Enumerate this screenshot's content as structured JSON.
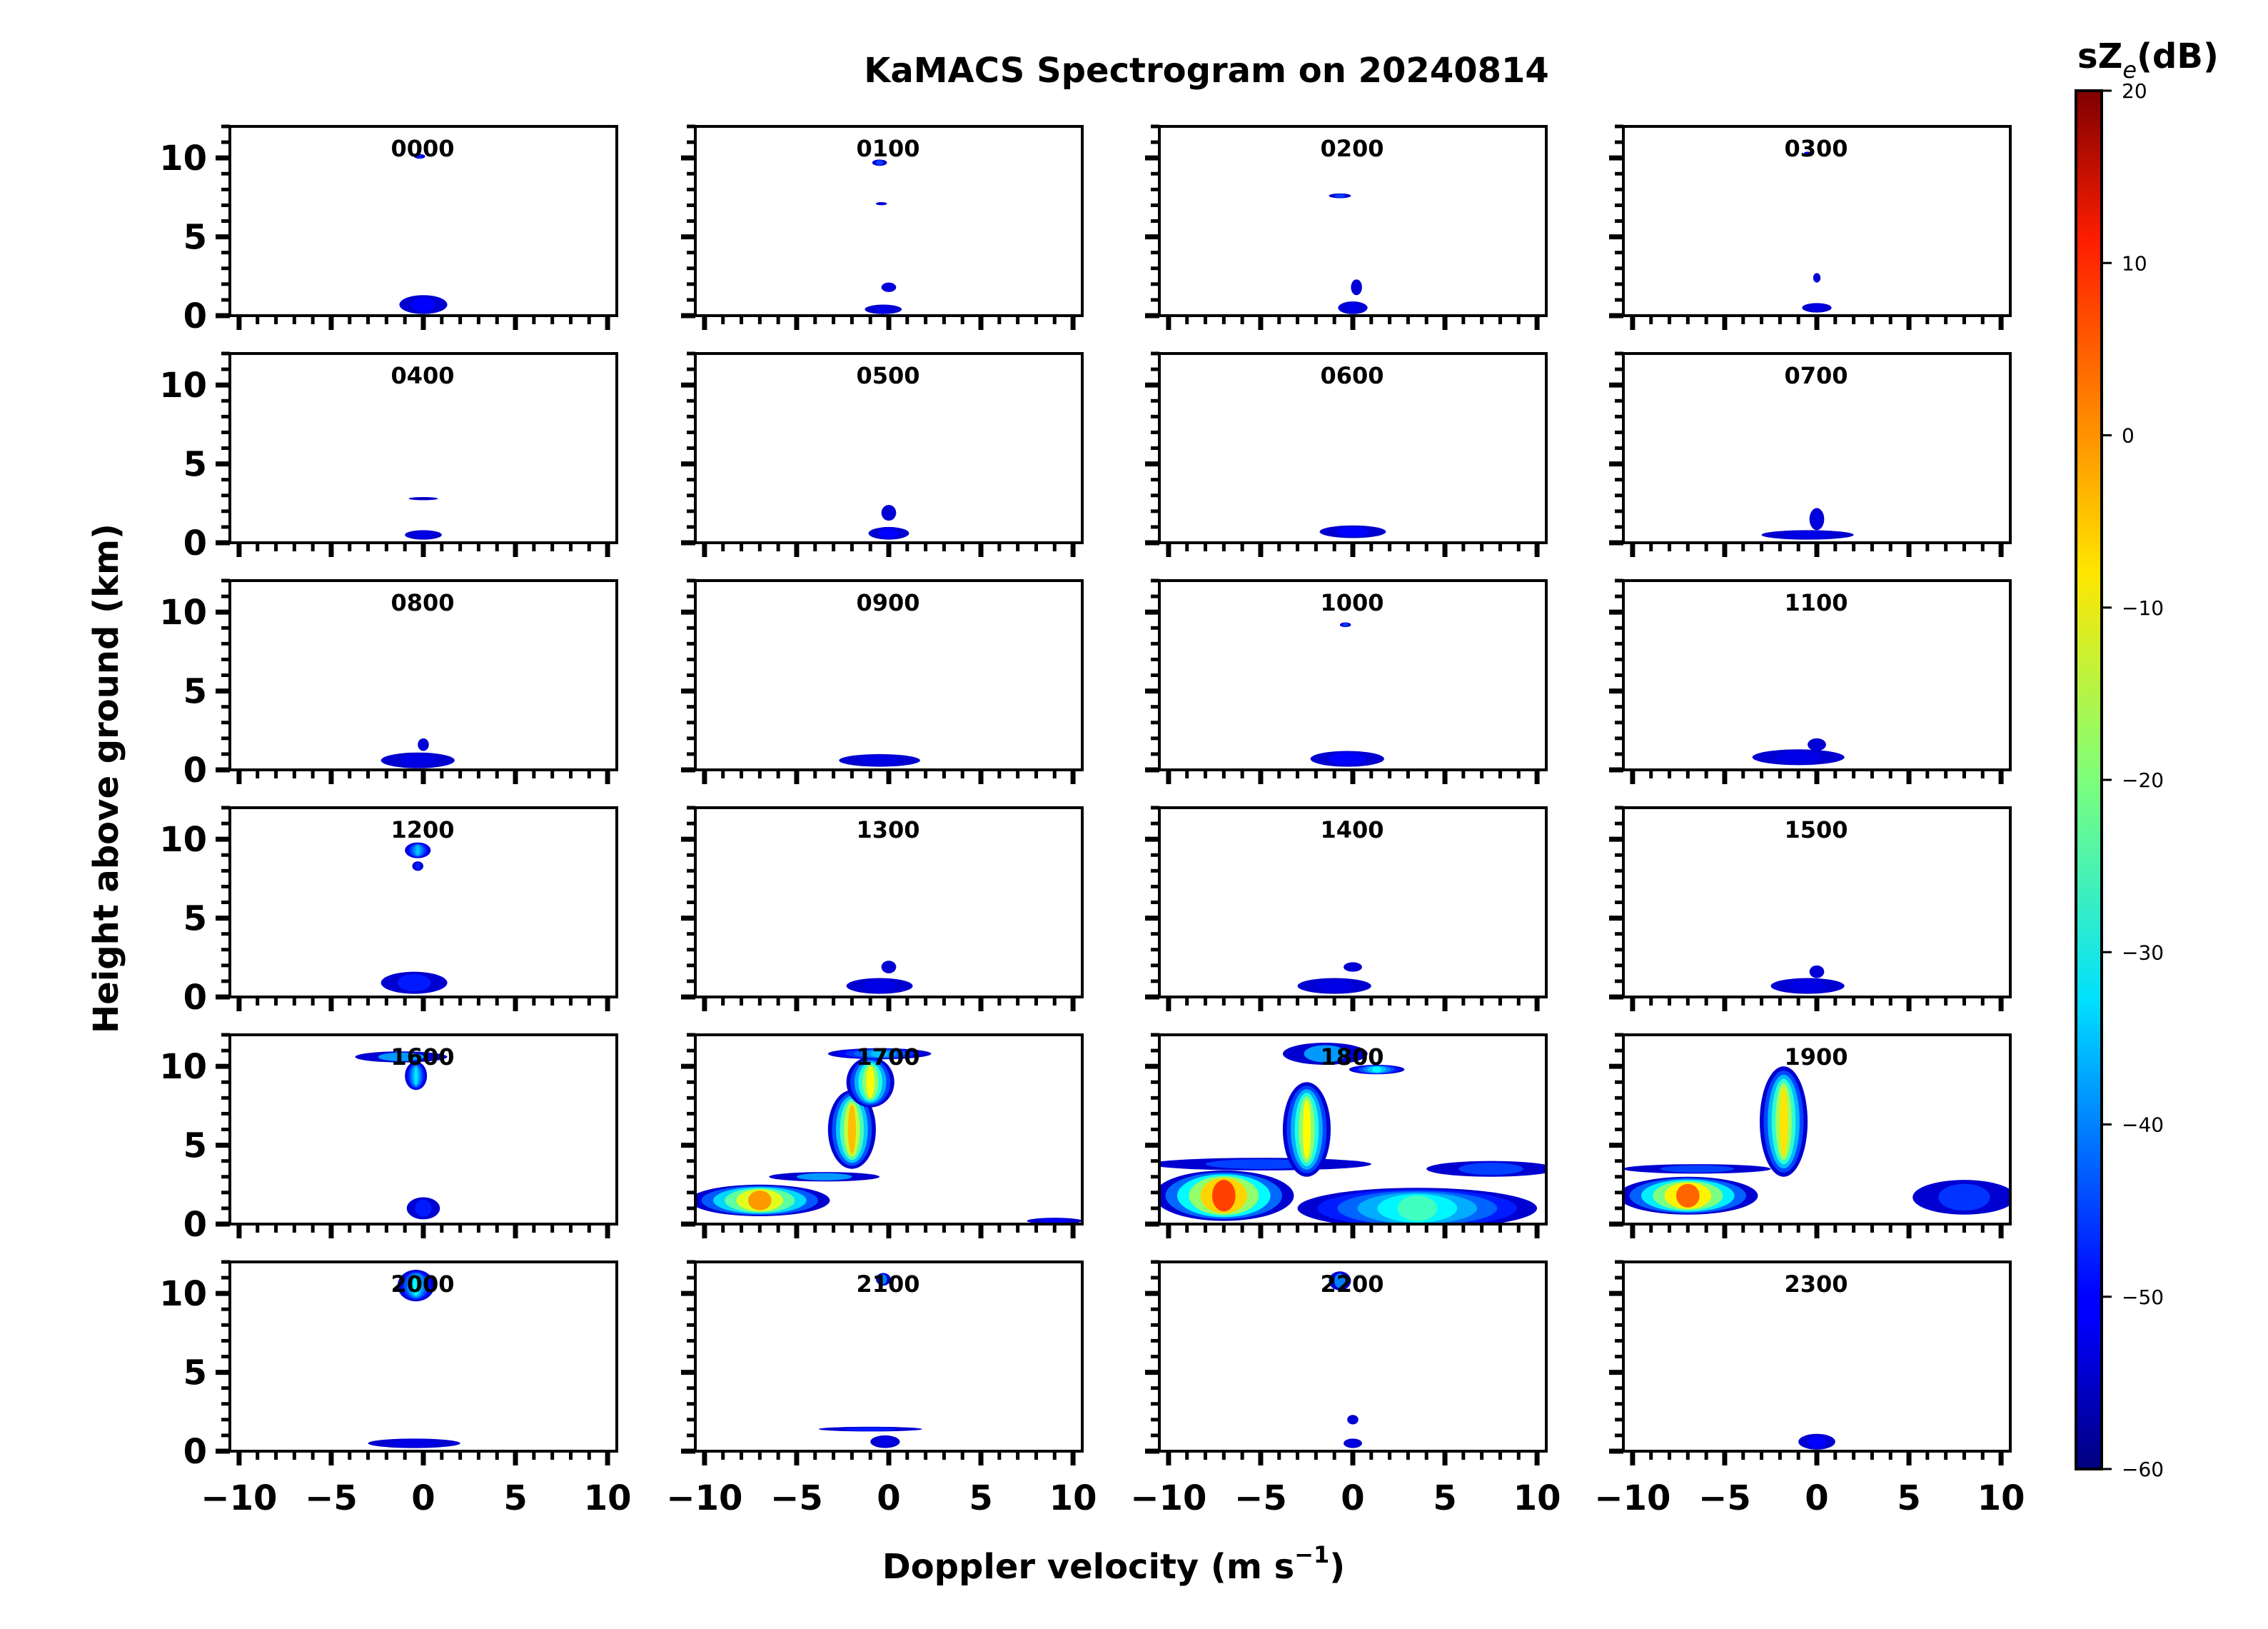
{
  "chart_data": {
    "type": "heatmap",
    "title": "KaMACS Spectrogram on 20240814",
    "xlabel": "Doppler velocity (m s",
    "xlabel_sup": "−1",
    "xlabel_close": ")",
    "ylabel": "Height above ground (km)",
    "xlim": [
      -10.5,
      10.5
    ],
    "ylim": [
      0,
      12
    ],
    "x_ticks": [
      -10,
      -5,
      0,
      5,
      10
    ],
    "x_tick_labels": [
      "−10",
      "−5",
      "0",
      "5",
      "10"
    ],
    "y_ticks": [
      0,
      5,
      10
    ],
    "y_tick_labels": [
      "0",
      "5",
      "10"
    ],
    "colorbar": {
      "label_main": "sZ",
      "label_sub": "e",
      "label_unit": "(dB)",
      "range": [
        -60,
        20
      ],
      "ticks": [
        20,
        10,
        0,
        -10,
        -20,
        -30,
        -40,
        -50,
        -60
      ],
      "tick_labels": [
        "20",
        "10",
        "0",
        "−10",
        "−20",
        "−30",
        "−40",
        "−50",
        "−60"
      ],
      "colormap": "jet"
    },
    "panels": [
      {
        "label": "0000",
        "features": [
          {
            "v": 0,
            "h": 0.7,
            "dv": 1.3,
            "dh": 0.6,
            "z": -50
          },
          {
            "v": -0.2,
            "h": 10.1,
            "dv": 0.3,
            "dh": 0.15,
            "z": -48
          }
        ]
      },
      {
        "label": "0100",
        "features": [
          {
            "v": -0.3,
            "h": 0.4,
            "dv": 1.0,
            "dh": 0.3,
            "z": -52
          },
          {
            "v": 0,
            "h": 1.8,
            "dv": 0.4,
            "dh": 0.3,
            "z": -52
          },
          {
            "v": -0.5,
            "h": 9.7,
            "dv": 0.4,
            "dh": 0.2,
            "z": -45
          },
          {
            "v": -0.4,
            "h": 7.1,
            "dv": 0.3,
            "dh": 0.1,
            "z": -52
          }
        ]
      },
      {
        "label": "0200",
        "features": [
          {
            "v": 0,
            "h": 0.5,
            "dv": 0.8,
            "dh": 0.4,
            "z": -52
          },
          {
            "v": 0.2,
            "h": 1.8,
            "dv": 0.3,
            "dh": 0.5,
            "z": -53
          },
          {
            "v": -0.7,
            "h": 7.6,
            "dv": 0.6,
            "dh": 0.15,
            "z": -45
          }
        ]
      },
      {
        "label": "0300",
        "features": [
          {
            "v": 0,
            "h": 0.5,
            "dv": 0.8,
            "dh": 0.3,
            "z": -52
          },
          {
            "v": 0,
            "h": 2.4,
            "dv": 0.2,
            "dh": 0.3,
            "z": -53
          },
          {
            "v": -0.5,
            "h": 10.3,
            "dv": 0.2,
            "dh": 0.1,
            "z": -50
          }
        ]
      },
      {
        "label": "0400",
        "features": [
          {
            "v": 0,
            "h": 0.5,
            "dv": 1.0,
            "dh": 0.3,
            "z": -52
          },
          {
            "v": 0,
            "h": 2.8,
            "dv": 0.8,
            "dh": 0.1,
            "z": -55
          }
        ]
      },
      {
        "label": "0500",
        "features": [
          {
            "v": 0,
            "h": 0.6,
            "dv": 1.1,
            "dh": 0.4,
            "z": -50
          },
          {
            "v": 0,
            "h": 1.9,
            "dv": 0.4,
            "dh": 0.5,
            "z": -53
          }
        ]
      },
      {
        "label": "0600",
        "features": [
          {
            "v": 0,
            "h": 0.7,
            "dv": 1.8,
            "dh": 0.4,
            "z": -50
          }
        ]
      },
      {
        "label": "0700",
        "features": [
          {
            "v": -0.5,
            "h": 0.5,
            "dv": 2.5,
            "dh": 0.3,
            "z": -52
          },
          {
            "v": 0,
            "h": 1.5,
            "dv": 0.4,
            "dh": 0.7,
            "z": -52
          }
        ]
      },
      {
        "label": "0800",
        "features": [
          {
            "v": -0.3,
            "h": 0.6,
            "dv": 2.0,
            "dh": 0.5,
            "z": -52
          },
          {
            "v": 0,
            "h": 1.6,
            "dv": 0.3,
            "dh": 0.4,
            "z": -53
          }
        ]
      },
      {
        "label": "0900",
        "features": [
          {
            "v": -0.5,
            "h": 0.6,
            "dv": 2.2,
            "dh": 0.4,
            "z": -52
          }
        ]
      },
      {
        "label": "1000",
        "features": [
          {
            "v": -0.3,
            "h": 0.7,
            "dv": 2.0,
            "dh": 0.5,
            "z": -50
          },
          {
            "v": -0.4,
            "h": 9.2,
            "dv": 0.3,
            "dh": 0.15,
            "z": -45
          }
        ]
      },
      {
        "label": "1100",
        "features": [
          {
            "v": -1.0,
            "h": 0.8,
            "dv": 2.5,
            "dh": 0.5,
            "z": -52
          },
          {
            "v": 0,
            "h": 1.6,
            "dv": 0.5,
            "dh": 0.4,
            "z": -53
          }
        ]
      },
      {
        "label": "1200",
        "features": [
          {
            "v": -0.5,
            "h": 0.9,
            "dv": 1.8,
            "dh": 0.7,
            "z": -48
          },
          {
            "v": -0.3,
            "h": 9.3,
            "dv": 0.7,
            "dh": 0.5,
            "z": -35
          },
          {
            "v": -0.3,
            "h": 8.3,
            "dv": 0.3,
            "dh": 0.3,
            "z": -48
          }
        ]
      },
      {
        "label": "1300",
        "features": [
          {
            "v": -0.5,
            "h": 0.7,
            "dv": 1.8,
            "dh": 0.5,
            "z": -52
          },
          {
            "v": 0,
            "h": 1.9,
            "dv": 0.4,
            "dh": 0.4,
            "z": -53
          }
        ]
      },
      {
        "label": "1400",
        "features": [
          {
            "v": -1.0,
            "h": 0.7,
            "dv": 2.0,
            "dh": 0.5,
            "z": -52
          },
          {
            "v": 0,
            "h": 1.9,
            "dv": 0.5,
            "dh": 0.3,
            "z": -53
          }
        ]
      },
      {
        "label": "1500",
        "features": [
          {
            "v": -0.5,
            "h": 0.7,
            "dv": 2.0,
            "dh": 0.5,
            "z": -52
          },
          {
            "v": 0,
            "h": 1.6,
            "dv": 0.4,
            "dh": 0.4,
            "z": -53
          }
        ]
      },
      {
        "label": "1600",
        "features": [
          {
            "v": 0,
            "h": 1.0,
            "dv": 0.9,
            "dh": 0.7,
            "z": -48
          },
          {
            "v": -1.2,
            "h": 10.6,
            "dv": 2.5,
            "dh": 0.35,
            "z": -38
          },
          {
            "v": -0.4,
            "h": 9.4,
            "dv": 0.6,
            "dh": 0.9,
            "z": -32
          }
        ]
      },
      {
        "label": "1700",
        "features": [
          {
            "v": -7,
            "h": 1.5,
            "dv": 3.8,
            "dh": 1.0,
            "z": -2
          },
          {
            "v": -3.5,
            "h": 3.0,
            "dv": 3.0,
            "dh": 0.3,
            "z": -38
          },
          {
            "v": -2.0,
            "h": 6.0,
            "dv": 1.3,
            "dh": 2.5,
            "z": -5
          },
          {
            "v": -1.0,
            "h": 9.0,
            "dv": 1.3,
            "dh": 1.6,
            "z": -10
          },
          {
            "v": -0.5,
            "h": 10.8,
            "dv": 2.8,
            "dh": 0.35,
            "z": -35
          },
          {
            "v": 9,
            "h": 0.2,
            "dv": 1.5,
            "dh": 0.2,
            "z": -50
          }
        ]
      },
      {
        "label": "1800",
        "features": [
          {
            "v": -7,
            "h": 1.8,
            "dv": 3.8,
            "dh": 1.6,
            "z": 5
          },
          {
            "v": -5,
            "h": 3.8,
            "dv": 6.0,
            "dh": 0.4,
            "z": -45
          },
          {
            "v": 3.5,
            "h": 1.0,
            "dv": 6.5,
            "dh": 1.3,
            "z": -25
          },
          {
            "v": 7.5,
            "h": 3.5,
            "dv": 3.5,
            "dh": 0.5,
            "z": -45
          },
          {
            "v": -2.5,
            "h": 6.0,
            "dv": 1.3,
            "dh": 3.0,
            "z": -10
          },
          {
            "v": -1.5,
            "h": 10.8,
            "dv": 2.3,
            "dh": 0.7,
            "z": -38
          },
          {
            "v": 1.3,
            "h": 9.8,
            "dv": 1.5,
            "dh": 0.3,
            "z": -30
          }
        ]
      },
      {
        "label": "1900",
        "features": [
          {
            "v": -7,
            "h": 1.8,
            "dv": 3.8,
            "dh": 1.2,
            "z": 2
          },
          {
            "v": -6.5,
            "h": 3.5,
            "dv": 4.0,
            "dh": 0.3,
            "z": -45
          },
          {
            "v": -1.8,
            "h": 6.5,
            "dv": 1.3,
            "dh": 3.5,
            "z": -8
          },
          {
            "v": 8,
            "h": 1.7,
            "dv": 2.8,
            "dh": 1.1,
            "z": -46
          }
        ]
      },
      {
        "label": "2000",
        "features": [
          {
            "v": -0.5,
            "h": 0.5,
            "dv": 2.5,
            "dh": 0.3,
            "z": -52
          },
          {
            "v": -0.4,
            "h": 10.5,
            "dv": 1.0,
            "dh": 1.0,
            "z": -30
          }
        ]
      },
      {
        "label": "2100",
        "features": [
          {
            "v": -1.0,
            "h": 1.4,
            "dv": 2.8,
            "dh": 0.15,
            "z": -48
          },
          {
            "v": -0.2,
            "h": 0.6,
            "dv": 0.8,
            "dh": 0.4,
            "z": -52
          },
          {
            "v": -0.3,
            "h": 10.9,
            "dv": 0.4,
            "dh": 0.4,
            "z": -40
          }
        ]
      },
      {
        "label": "2200",
        "features": [
          {
            "v": -0.7,
            "h": 10.8,
            "dv": 0.6,
            "dh": 0.6,
            "z": -40
          },
          {
            "v": 0,
            "h": 0.5,
            "dv": 0.5,
            "dh": 0.3,
            "z": -52
          },
          {
            "v": 0,
            "h": 2.0,
            "dv": 0.3,
            "dh": 0.3,
            "z": -53
          }
        ]
      },
      {
        "label": "2300",
        "features": [
          {
            "v": 0,
            "h": 0.6,
            "dv": 1.0,
            "dh": 0.5,
            "z": -50
          }
        ]
      }
    ]
  }
}
